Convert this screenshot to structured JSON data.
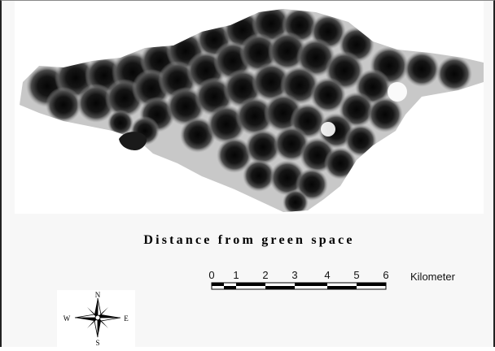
{
  "map": {
    "title": "Distance from green space"
  },
  "scale_bar": {
    "labels": [
      "0",
      "1",
      "2",
      "3",
      "4",
      "5",
      "6"
    ],
    "unit": "Kilometer"
  },
  "compass": {
    "north": "N",
    "south": "S",
    "east": "E",
    "west": "W"
  },
  "colors": {
    "near": "#0a0a0a",
    "far": "#ffffff",
    "panel": "#f7f7f7"
  }
}
